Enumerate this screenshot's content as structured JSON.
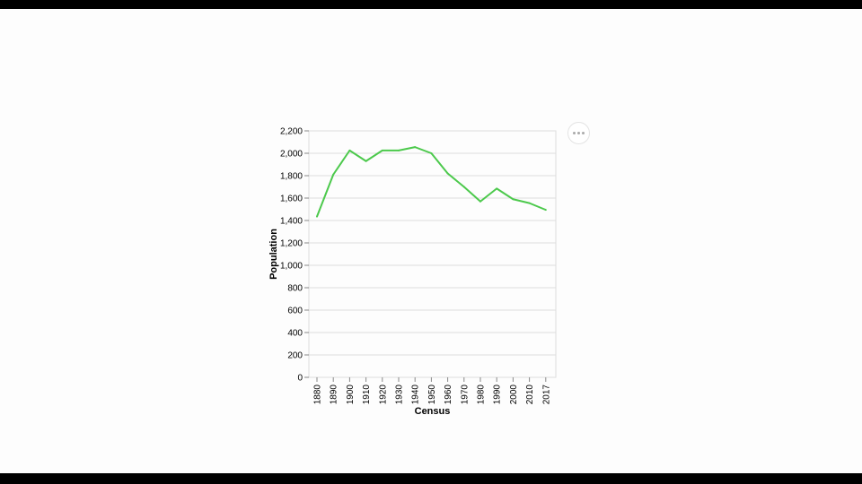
{
  "chart_data": {
    "type": "line",
    "title": "",
    "xlabel": "Census",
    "ylabel": "Population",
    "categories": [
      "1880",
      "1890",
      "1900",
      "1910",
      "1920",
      "1930",
      "1940",
      "1950",
      "1960",
      "1970",
      "1980",
      "1990",
      "2000",
      "2010",
      "2017"
    ],
    "series": [
      {
        "values": [
          1435,
          1810,
          2025,
          1930,
          2025,
          2025,
          2055,
          2000,
          1820,
          1700,
          1570,
          1685,
          1590,
          1555,
          1495
        ]
      }
    ],
    "ylim": [
      0,
      2200
    ],
    "yticks": [
      0,
      200,
      400,
      600,
      800,
      1000,
      1200,
      1400,
      1600,
      1800,
      2000,
      2200
    ],
    "grid": true,
    "line_color": "#4cc94c"
  },
  "toolbar": {
    "menu_icon": "ellipsis-icon"
  }
}
